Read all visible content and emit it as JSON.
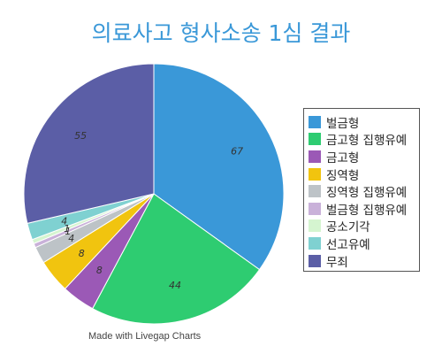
{
  "chart_data": {
    "type": "pie",
    "title": "의료사고 형사소송 1심 결과",
    "categories": [
      "벌금형",
      "금고형 집행유예",
      "금고형",
      "징역형",
      "징역형 집행유예",
      "벌금형 집행유예",
      "공소기각",
      "선고유예",
      "무죄"
    ],
    "values": [
      67,
      44,
      8,
      8,
      4,
      1,
      1,
      4,
      55
    ],
    "colors": [
      "#3a98d8",
      "#2ecc71",
      "#9b59b6",
      "#f1c40f",
      "#bdc3c7",
      "#c9b1d9",
      "#d5f5d0",
      "#7fd1d1",
      "#5b5ea6"
    ],
    "legend_position": "right",
    "start_angle_deg": 0
  },
  "footer": "Made with Livegap Charts"
}
